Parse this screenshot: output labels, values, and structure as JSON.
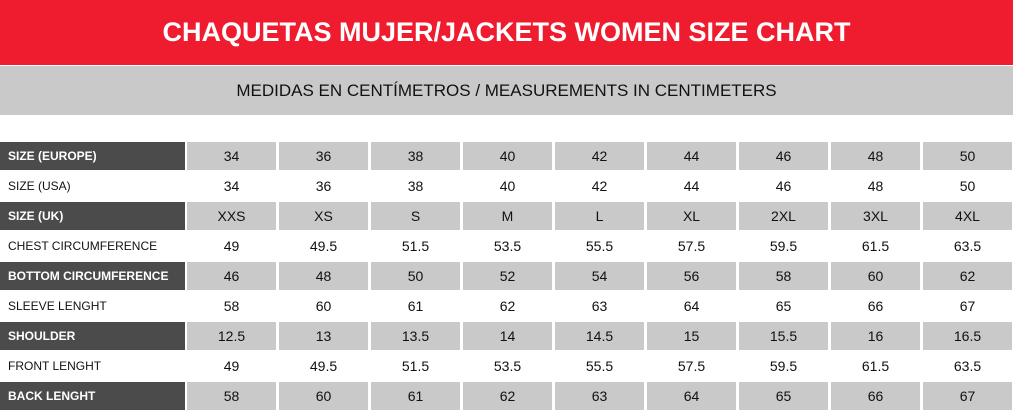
{
  "header": {
    "title": "CHAQUETAS MUJER/JACKETS WOMEN SIZE CHART",
    "subtitle": "MEDIDAS EN CENTÍMETROS / MEASUREMENTS IN CENTIMETERS"
  },
  "table": {
    "rows": [
      [
        "SIZE  (EUROPE)",
        "34",
        "36",
        "38",
        "40",
        "42",
        "44",
        "46",
        "48",
        "50"
      ],
      [
        "SIZE  (USA)",
        "34",
        "36",
        "38",
        "40",
        "42",
        "44",
        "46",
        "48",
        "50"
      ],
      [
        "SIZE  (UK)",
        "XXS",
        "XS",
        "S",
        "M",
        "L",
        "XL",
        "2XL",
        "3XL",
        "4XL"
      ],
      [
        "CHEST CIRCUMFERENCE",
        "49",
        "49.5",
        "51.5",
        "53.5",
        "55.5",
        "57.5",
        "59.5",
        "61.5",
        "63.5"
      ],
      [
        "BOTTOM CIRCUMFERENCE",
        "46",
        "48",
        "50",
        "52",
        "54",
        "56",
        "58",
        "60",
        "62"
      ],
      [
        "SLEEVE LENGHT",
        "58",
        "60",
        "61",
        "62",
        "63",
        "64",
        "65",
        "66",
        "67"
      ],
      [
        "SHOULDER",
        "12.5",
        "13",
        "13.5",
        "14",
        "14.5",
        "15",
        "15.5",
        "16",
        "16.5"
      ],
      [
        "FRONT LENGHT",
        "49",
        "49.5",
        "51.5",
        "53.5",
        "55.5",
        "57.5",
        "59.5",
        "61.5",
        "63.5"
      ],
      [
        "BACK LENGHT",
        "58",
        "60",
        "61",
        "62",
        "63",
        "64",
        "65",
        "66",
        "67"
      ]
    ]
  }
}
